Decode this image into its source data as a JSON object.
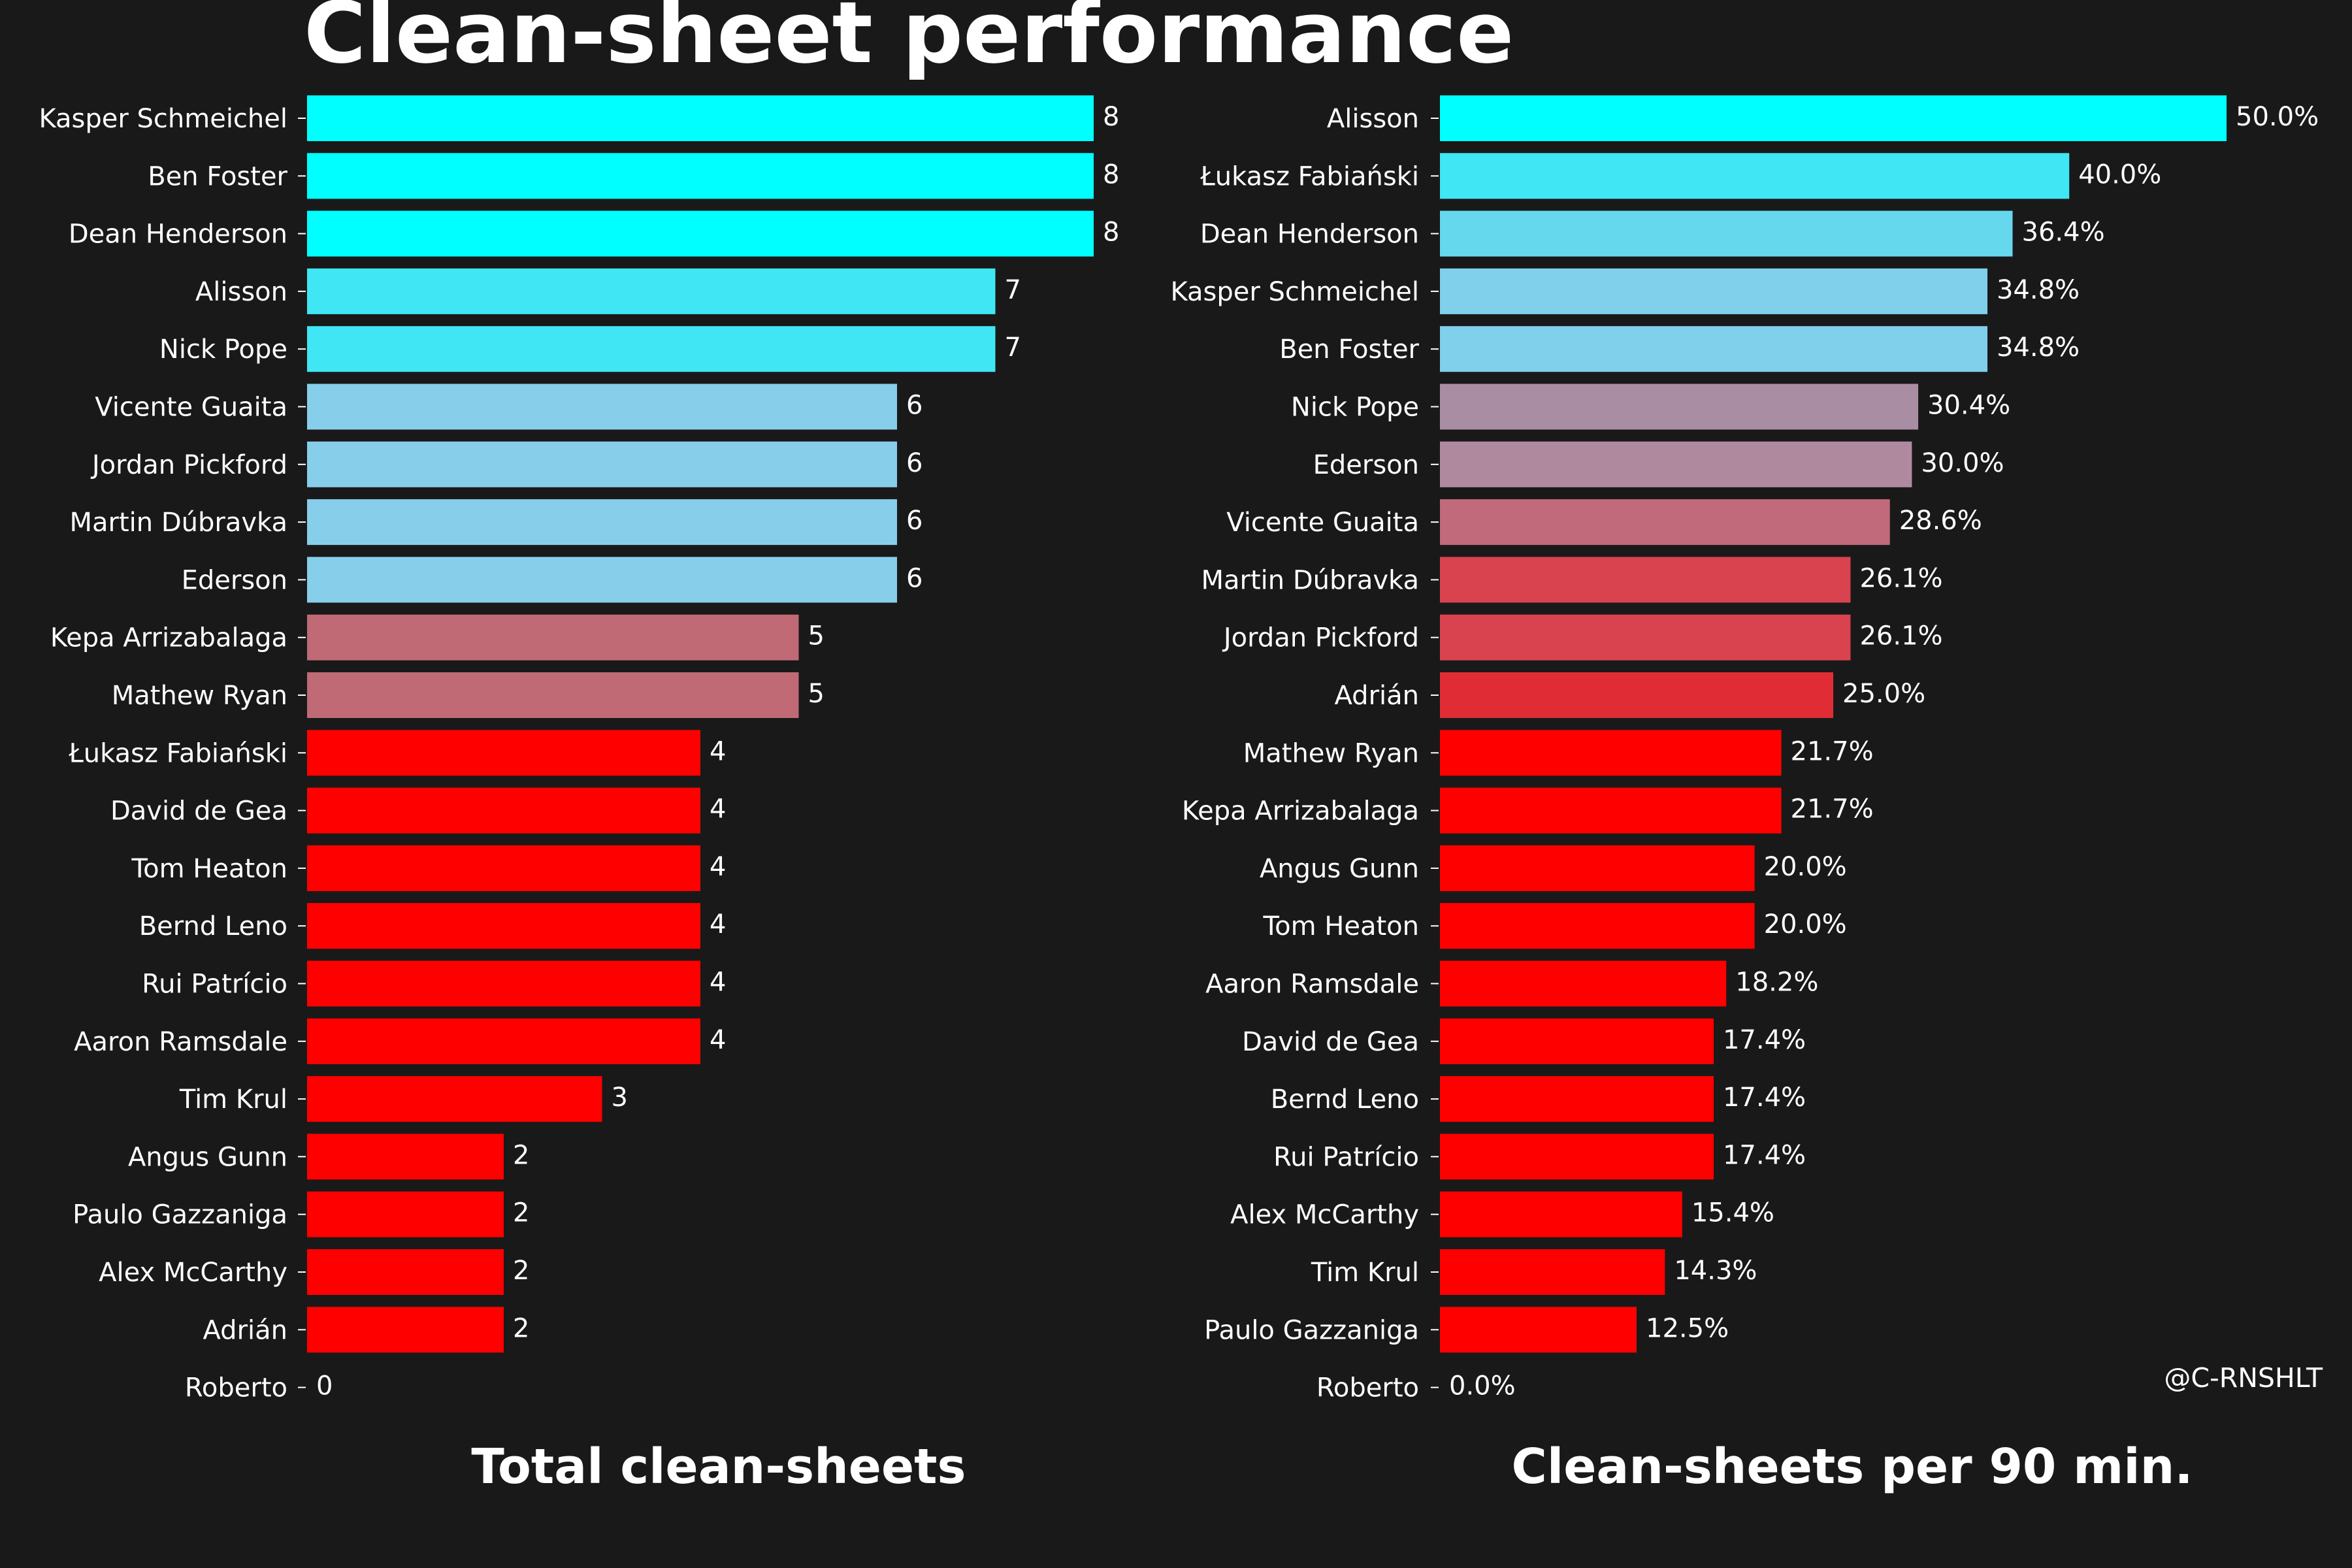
{
  "title": "Clean-sheet performance",
  "credit": "@C-RNSHLT",
  "chart_data": [
    {
      "type": "bar",
      "orientation": "horizontal",
      "title": "Total clean-sheets",
      "value_format": "integer",
      "xlim": [
        0,
        8
      ],
      "categories": [
        "Kasper Schmeichel",
        "Ben Foster",
        "Dean Henderson",
        "Alisson",
        "Nick Pope",
        "Vicente Guaita",
        "Jordan Pickford",
        "Martin Dúbravka",
        "Ederson",
        "Kepa Arrizabalaga",
        "Mathew Ryan",
        "Łukasz Fabiański",
        "David de Gea",
        "Tom Heaton",
        "Bernd Leno",
        "Rui Patrício",
        "Aaron Ramsdale",
        "Tim Krul",
        "Angus Gunn",
        "Paulo Gazzaniga",
        "Alex McCarthy",
        "Adrián",
        "Roberto"
      ],
      "values": [
        8,
        8,
        8,
        7,
        7,
        6,
        6,
        6,
        6,
        5,
        5,
        4,
        4,
        4,
        4,
        4,
        4,
        3,
        2,
        2,
        2,
        2,
        0
      ],
      "value_labels": [
        "8",
        "8",
        "8",
        "7",
        "7",
        "6",
        "6",
        "6",
        "6",
        "5",
        "5",
        "4",
        "4",
        "4",
        "4",
        "4",
        "4",
        "3",
        "2",
        "2",
        "2",
        "2",
        "0"
      ],
      "colors": [
        "#00ffff",
        "#00ffff",
        "#00ffff",
        "#40e6f4",
        "#40e6f4",
        "#87ceeb",
        "#87ceeb",
        "#87ceeb",
        "#87ceeb",
        "#c06a76",
        "#c06a76",
        "#ff0000",
        "#ff0000",
        "#ff0000",
        "#ff0000",
        "#ff0000",
        "#ff0000",
        "#ff0000",
        "#ff0000",
        "#ff0000",
        "#ff0000",
        "#ff0000",
        "#ff0000"
      ],
      "grid": false
    },
    {
      "type": "bar",
      "orientation": "horizontal",
      "title": "Clean-sheets per 90 min.",
      "value_format": "percent",
      "xlim": [
        0,
        50
      ],
      "categories": [
        "Alisson",
        "Łukasz Fabiański",
        "Dean Henderson",
        "Kasper Schmeichel",
        "Ben Foster",
        "Nick Pope",
        "Ederson",
        "Vicente Guaita",
        "Martin Dúbravka",
        "Jordan Pickford",
        "Adrián",
        "Mathew Ryan",
        "Kepa Arrizabalaga",
        "Angus Gunn",
        "Tom Heaton",
        "Aaron Ramsdale",
        "David de Gea",
        "Bernd Leno",
        "Rui Patrício",
        "Alex McCarthy",
        "Tim Krul",
        "Paulo Gazzaniga",
        "Roberto"
      ],
      "values": [
        50.0,
        40.0,
        36.4,
        34.8,
        34.8,
        30.4,
        30.0,
        28.6,
        26.1,
        26.1,
        25.0,
        21.7,
        21.7,
        20.0,
        20.0,
        18.2,
        17.4,
        17.4,
        17.4,
        15.4,
        14.3,
        12.5,
        0.0
      ],
      "value_labels": [
        "50.0%",
        "40.0%",
        "36.4%",
        "34.8%",
        "34.8%",
        "30.4%",
        "30.0%",
        "28.6%",
        "26.1%",
        "26.1%",
        "25.0%",
        "21.7%",
        "21.7%",
        "20.0%",
        "20.0%",
        "18.2%",
        "17.4%",
        "17.4%",
        "17.4%",
        "15.4%",
        "14.3%",
        "12.5%",
        "0.0%"
      ],
      "colors": [
        "#00ffff",
        "#40e6f4",
        "#66d8ee",
        "#80d0eb",
        "#80d0eb",
        "#a98ea3",
        "#af8a9f",
        "#c06a7c",
        "#d9434f",
        "#d9434f",
        "#e02d35",
        "#ff0000",
        "#ff0000",
        "#ff0000",
        "#ff0000",
        "#ff0000",
        "#ff0000",
        "#ff0000",
        "#ff0000",
        "#ff0000",
        "#ff0000",
        "#ff0000",
        "#ff0000"
      ],
      "grid": false
    }
  ]
}
